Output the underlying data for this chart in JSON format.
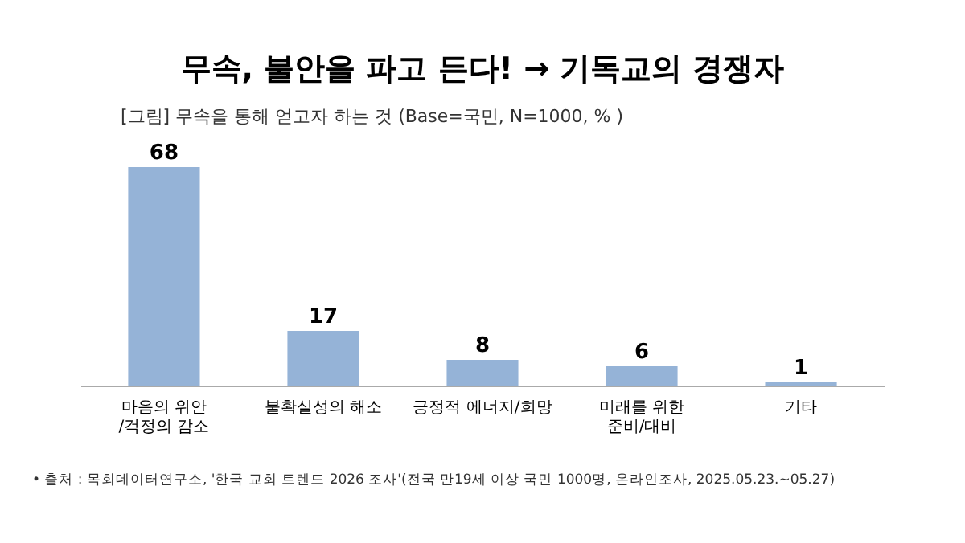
{
  "chart_data": {
    "type": "bar",
    "title": "무속, 불안을 파고 든다! → 기독교의 경쟁자",
    "subtitle": "[그림] 무속을 통해 얻고자 하는 것 (Base=국민, N=1000, % )",
    "categories": [
      "마음의 위안\n/걱정의 감소",
      "불확실성의 해소",
      "긍정적 에너지/희망",
      "미래를 위한\n준비/대비",
      "기타"
    ],
    "values": [
      68,
      17,
      8,
      6,
      1
    ],
    "color": "#95b3d7",
    "data_labels": true,
    "grid": false,
    "annotations": [
      "• 출처 : 목회데이터연구소, '한국 교회 트렌드 2026 조사'(전국 만19세 이상 국민 1000명, 온라인조사, 2025.05.23.~05.27)"
    ]
  }
}
